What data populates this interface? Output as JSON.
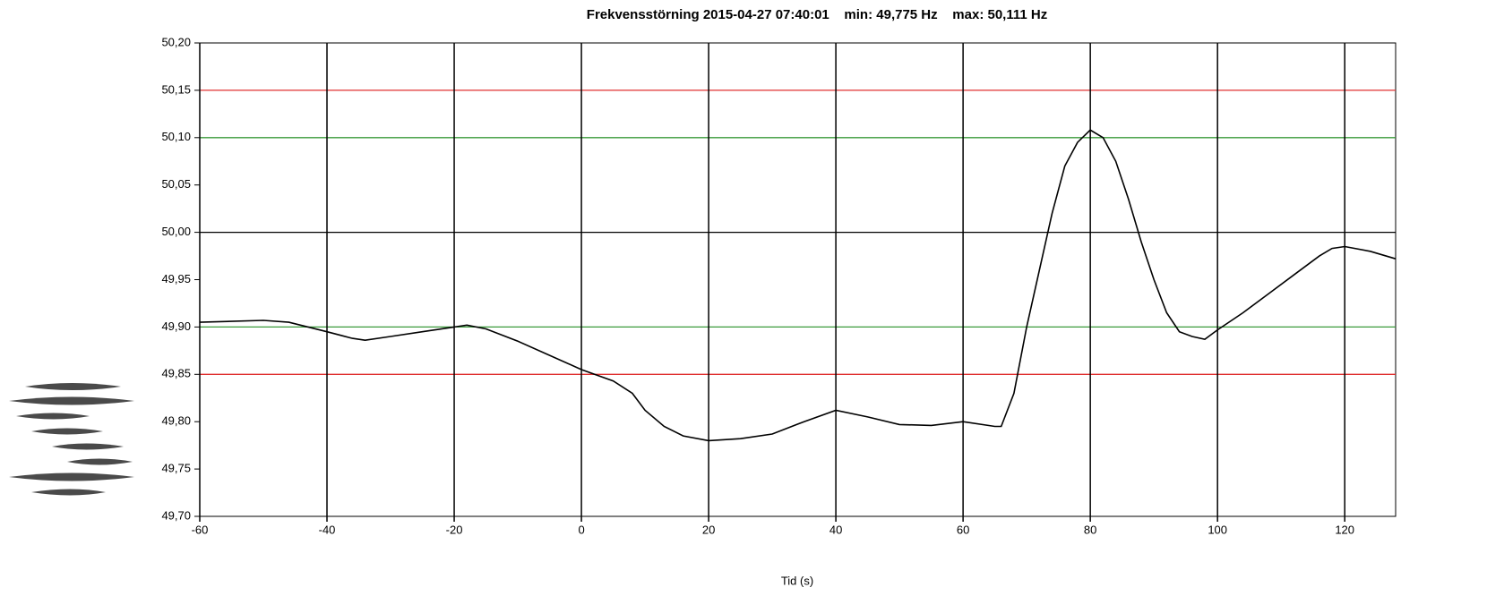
{
  "chart_data": {
    "type": "line",
    "title": "Frekvensstörning 2015-04-27 07:40:01    min: 49,775 Hz    max: 50,111 Hz",
    "xlabel": "Tid (s)",
    "x": [
      -60,
      -50,
      -46,
      -40,
      -36,
      -34,
      -30,
      -25,
      -20,
      -18,
      -15,
      -10,
      -5,
      0,
      5,
      8,
      10,
      13,
      16,
      20,
      25,
      30,
      35,
      40,
      45,
      50,
      55,
      60,
      65,
      66,
      68,
      70,
      72,
      74,
      76,
      78,
      80,
      82,
      84,
      86,
      88,
      90,
      92,
      94,
      96,
      98,
      100,
      104,
      108,
      112,
      116,
      118,
      120,
      124,
      128
    ],
    "values": [
      49.905,
      49.907,
      49.905,
      49.895,
      49.888,
      49.886,
      49.89,
      49.895,
      49.9,
      49.902,
      49.898,
      49.885,
      49.87,
      49.855,
      49.843,
      49.83,
      49.812,
      49.795,
      49.785,
      49.78,
      49.782,
      49.787,
      49.8,
      49.812,
      49.805,
      49.797,
      49.796,
      49.8,
      49.795,
      49.795,
      49.83,
      49.9,
      49.96,
      50.02,
      50.07,
      50.095,
      50.108,
      50.1,
      50.075,
      50.035,
      49.99,
      49.95,
      49.915,
      49.895,
      49.89,
      49.887,
      49.897,
      49.915,
      49.935,
      49.955,
      49.975,
      49.983,
      49.985,
      49.98,
      49.972
    ],
    "color": "#000000",
    "xlim": [
      -60,
      128
    ],
    "ylim": [
      49.7,
      50.2
    ],
    "xticks": [
      -60,
      -40,
      -20,
      0,
      20,
      40,
      60,
      80,
      100,
      120
    ],
    "yticks": [
      {
        "value": 49.7,
        "label": "49,70"
      },
      {
        "value": 49.75,
        "label": "49,75"
      },
      {
        "value": 49.8,
        "label": "49,80"
      },
      {
        "value": 49.85,
        "label": "49,85"
      },
      {
        "value": 49.9,
        "label": "49,90"
      },
      {
        "value": 49.95,
        "label": "49,95"
      },
      {
        "value": 50,
        "label": "50,00"
      },
      {
        "value": 50.05,
        "label": "50,05"
      },
      {
        "value": 50.1,
        "label": "50,10"
      },
      {
        "value": 50.15,
        "label": "50,15"
      },
      {
        "value": 50.2,
        "label": "50,20"
      }
    ],
    "reference_lines": [
      {
        "value": 50.15,
        "color": "#e03030"
      },
      {
        "value": 50.1,
        "color": "#3a9a3a"
      },
      {
        "value": 50,
        "color": "#000000"
      },
      {
        "value": 49.9,
        "color": "#3a9a3a"
      },
      {
        "value": 49.85,
        "color": "#e03030"
      }
    ],
    "xgrid": true
  }
}
